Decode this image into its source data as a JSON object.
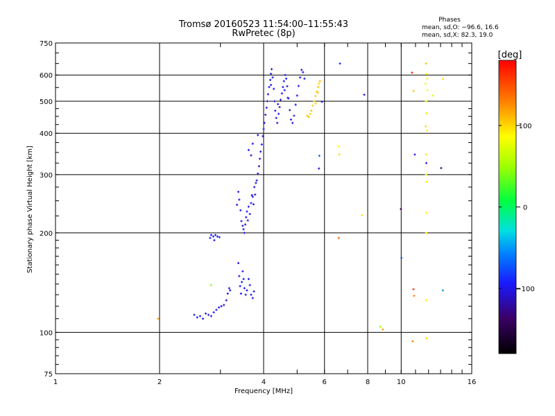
{
  "title": "Tromsø 20160523 11:54:00–11:55:43",
  "subtitle": "RwPretec (8p)",
  "stats": {
    "heading": "Phases",
    "line1": "mean, sd,O: −96.6, 16.6",
    "line2": "mean, sd,X:  82.3, 19.0"
  },
  "colorbar": {
    "label": "[deg]",
    "range": [
      -180,
      180
    ],
    "ticks": [
      {
        "value": 100,
        "label": "100"
      },
      {
        "value": 0,
        "label": "0"
      },
      {
        "value": -100,
        "label": "−100"
      }
    ]
  },
  "chart_data": {
    "type": "scatter",
    "xlabel": "Frequency [MHz]",
    "ylabel": "Stationary phase Virtual Height [km]",
    "xscale": "log",
    "yscale": "log",
    "xlim": [
      1,
      16
    ],
    "ylim": [
      75,
      750
    ],
    "xticks": [
      {
        "value": 1,
        "label": "1"
      },
      {
        "value": 2,
        "label": "2"
      },
      {
        "value": 4,
        "label": "4"
      },
      {
        "value": 6,
        "label": "6"
      },
      {
        "value": 8,
        "label": "8"
      },
      {
        "value": 10,
        "label": "10"
      },
      {
        "value": 16,
        "label": "16"
      }
    ],
    "yticks": [
      {
        "value": 75,
        "label": "75"
      },
      {
        "value": 100,
        "label": "100"
      },
      {
        "value": 200,
        "label": "200"
      },
      {
        "value": 300,
        "label": "300"
      },
      {
        "value": 400,
        "label": "400"
      },
      {
        "value": 500,
        "label": "500"
      },
      {
        "value": 600,
        "label": "600"
      },
      {
        "value": 750,
        "label": "750"
      }
    ],
    "grid": true,
    "color_scale": "phase [deg], -180..180",
    "points": [
      [
        2.52,
        113,
        -96
      ],
      [
        2.57,
        111,
        -100
      ],
      [
        2.62,
        112,
        -98
      ],
      [
        2.67,
        110,
        -102
      ],
      [
        2.72,
        114,
        -95
      ],
      [
        2.77,
        113,
        -99
      ],
      [
        2.82,
        112,
        -101
      ],
      [
        2.87,
        115,
        -96
      ],
      [
        2.92,
        117,
        -100
      ],
      [
        2.97,
        119,
        -97
      ],
      [
        3.02,
        120,
        -105
      ],
      [
        3.07,
        121,
        -110
      ],
      [
        3.12,
        125,
        -108
      ],
      [
        3.15,
        131,
        -103
      ],
      [
        3.18,
        136,
        -99
      ],
      [
        2.82,
        197,
        -98
      ],
      [
        2.86,
        195,
        -92
      ],
      [
        2.9,
        197,
        -100
      ],
      [
        2.94,
        195,
        -95
      ],
      [
        2.98,
        194,
        -102
      ],
      [
        2.88,
        190,
        -96
      ],
      [
        2.8,
        193,
        -90
      ],
      [
        2.82,
        139,
        45
      ],
      [
        3.2,
        134,
        -98
      ],
      [
        3.35,
        243,
        -100
      ],
      [
        3.38,
        266,
        -98
      ],
      [
        3.4,
        252,
        -104
      ],
      [
        3.43,
        234,
        -95
      ],
      [
        3.45,
        217,
        -99
      ],
      [
        3.48,
        210,
        -102
      ],
      [
        3.5,
        205,
        -97
      ],
      [
        3.52,
        200,
        -100
      ],
      [
        3.54,
        212,
        -96
      ],
      [
        3.56,
        223,
        -103
      ],
      [
        3.58,
        232,
        -98
      ],
      [
        3.6,
        218,
        -99
      ],
      [
        3.62,
        240,
        -101
      ],
      [
        3.65,
        228,
        -97
      ],
      [
        3.68,
        246,
        -100
      ],
      [
        3.7,
        260,
        -98
      ],
      [
        3.72,
        257,
        -104
      ],
      [
        3.74,
        244,
        -96
      ],
      [
        3.76,
        275,
        -99
      ],
      [
        3.78,
        261,
        -102
      ],
      [
        3.8,
        283,
        -97
      ],
      [
        3.38,
        162,
        -103
      ],
      [
        3.4,
        148,
        -100
      ],
      [
        3.42,
        138,
        -98
      ],
      [
        3.44,
        131,
        -102
      ],
      [
        3.46,
        142,
        -96
      ],
      [
        3.48,
        153,
        -99
      ],
      [
        3.5,
        145,
        -101
      ],
      [
        3.52,
        136,
        -97
      ],
      [
        3.55,
        130,
        -100
      ],
      [
        3.58,
        134,
        -103
      ],
      [
        3.62,
        145,
        -98
      ],
      [
        3.65,
        139,
        -96
      ],
      [
        3.68,
        130,
        -100
      ],
      [
        3.72,
        127,
        -98
      ],
      [
        3.75,
        133,
        -101
      ],
      [
        3.82,
        288,
        -100
      ],
      [
        3.85,
        302,
        -97
      ],
      [
        3.88,
        318,
        -104
      ],
      [
        3.9,
        335,
        -99
      ],
      [
        3.92,
        352,
        -101
      ],
      [
        3.95,
        370,
        -96
      ],
      [
        3.98,
        392,
        -100
      ],
      [
        4.0,
        412,
        -98
      ],
      [
        4.02,
        430,
        -102
      ],
      [
        4.05,
        455,
        -97
      ],
      [
        4.08,
        478,
        -99
      ],
      [
        4.1,
        500,
        -104
      ],
      [
        4.12,
        525,
        -100
      ],
      [
        4.15,
        552,
        -97
      ],
      [
        4.18,
        580,
        -99
      ],
      [
        4.2,
        605,
        -102
      ],
      [
        4.22,
        625,
        -98
      ],
      [
        4.25,
        590,
        -100
      ],
      [
        4.28,
        545,
        -96
      ],
      [
        4.3,
        500,
        -101
      ],
      [
        4.32,
        468,
        -99
      ],
      [
        4.35,
        445,
        -103
      ],
      [
        4.38,
        430,
        -97
      ],
      [
        4.42,
        458,
        -100
      ],
      [
        4.45,
        480,
        -98
      ],
      [
        4.48,
        505,
        -102
      ],
      [
        4.52,
        528,
        -97
      ],
      [
        4.55,
        552,
        -99
      ],
      [
        4.58,
        575,
        -101
      ],
      [
        4.62,
        600,
        -100
      ],
      [
        4.65,
        585,
        -96
      ],
      [
        4.68,
        555,
        -103
      ],
      [
        4.72,
        510,
        -99
      ],
      [
        4.76,
        470,
        -101
      ],
      [
        4.8,
        440,
        -98
      ],
      [
        4.85,
        430,
        -100
      ],
      [
        4.9,
        452,
        -97
      ],
      [
        4.95,
        488,
        -102
      ],
      [
        5.0,
        520,
        -99
      ],
      [
        5.05,
        556,
        -101
      ],
      [
        5.1,
        590,
        -98
      ],
      [
        5.15,
        622,
        -100
      ],
      [
        5.2,
        612,
        -103
      ],
      [
        5.25,
        585,
        -97
      ],
      [
        3.62,
        356,
        -99
      ],
      [
        3.68,
        343,
        -102
      ],
      [
        3.72,
        372,
        -97
      ],
      [
        3.85,
        395,
        -100
      ],
      [
        4.2,
        560,
        -98
      ],
      [
        4.4,
        490,
        -101
      ],
      [
        4.6,
        540,
        -96
      ],
      [
        4.7,
        512,
        -100
      ],
      [
        5.35,
        452,
        105
      ],
      [
        5.4,
        448,
        108
      ],
      [
        5.45,
        458,
        102
      ],
      [
        5.5,
        468,
        110
      ],
      [
        5.55,
        485,
        104
      ],
      [
        5.6,
        500,
        107
      ],
      [
        5.65,
        518,
        103
      ],
      [
        5.7,
        535,
        109
      ],
      [
        5.75,
        552,
        105
      ],
      [
        5.78,
        565,
        100
      ],
      [
        5.74,
        530,
        106
      ],
      [
        5.66,
        492,
        101
      ],
      [
        5.82,
        575,
        112
      ],
      [
        5.8,
        342,
        -70
      ],
      [
        5.78,
        313,
        -105
      ],
      [
        5.9,
        498,
        -95
      ],
      [
        6.65,
        650,
        -88
      ],
      [
        6.6,
        365,
        90
      ],
      [
        6.62,
        345,
        100
      ],
      [
        6.6,
        193,
        140
      ],
      [
        7.82,
        523,
        -110
      ],
      [
        7.7,
        226,
        95
      ],
      [
        8.7,
        104,
        50
      ],
      [
        8.85,
        102,
        120
      ],
      [
        9.98,
        236,
        -140
      ],
      [
        10.02,
        168,
        -75
      ],
      [
        10.75,
        610,
        165
      ],
      [
        10.85,
        537,
        105
      ],
      [
        10.95,
        345,
        -100
      ],
      [
        10.85,
        135,
        162
      ],
      [
        10.9,
        129,
        130
      ],
      [
        10.8,
        94,
        130
      ],
      [
        11.8,
        650,
        105
      ],
      [
        11.82,
        605,
        88
      ],
      [
        11.9,
        585,
        75
      ],
      [
        11.75,
        565,
        80
      ],
      [
        11.92,
        540,
        85
      ],
      [
        11.8,
        500,
        90
      ],
      [
        11.85,
        460,
        95
      ],
      [
        11.78,
        420,
        100
      ],
      [
        11.88,
        408,
        92
      ],
      [
        11.8,
        345,
        95
      ],
      [
        11.82,
        325,
        -100
      ],
      [
        11.8,
        300,
        80
      ],
      [
        11.85,
        285,
        90
      ],
      [
        11.8,
        230,
        85
      ],
      [
        11.82,
        200,
        95
      ],
      [
        11.8,
        125,
        88
      ],
      [
        11.85,
        96,
        100
      ],
      [
        12.35,
        520,
        75
      ],
      [
        13.2,
        584,
        100
      ],
      [
        13.05,
        314,
        -120
      ],
      [
        13.2,
        134,
        -50
      ],
      [
        1.98,
        110,
        115
      ]
    ]
  }
}
